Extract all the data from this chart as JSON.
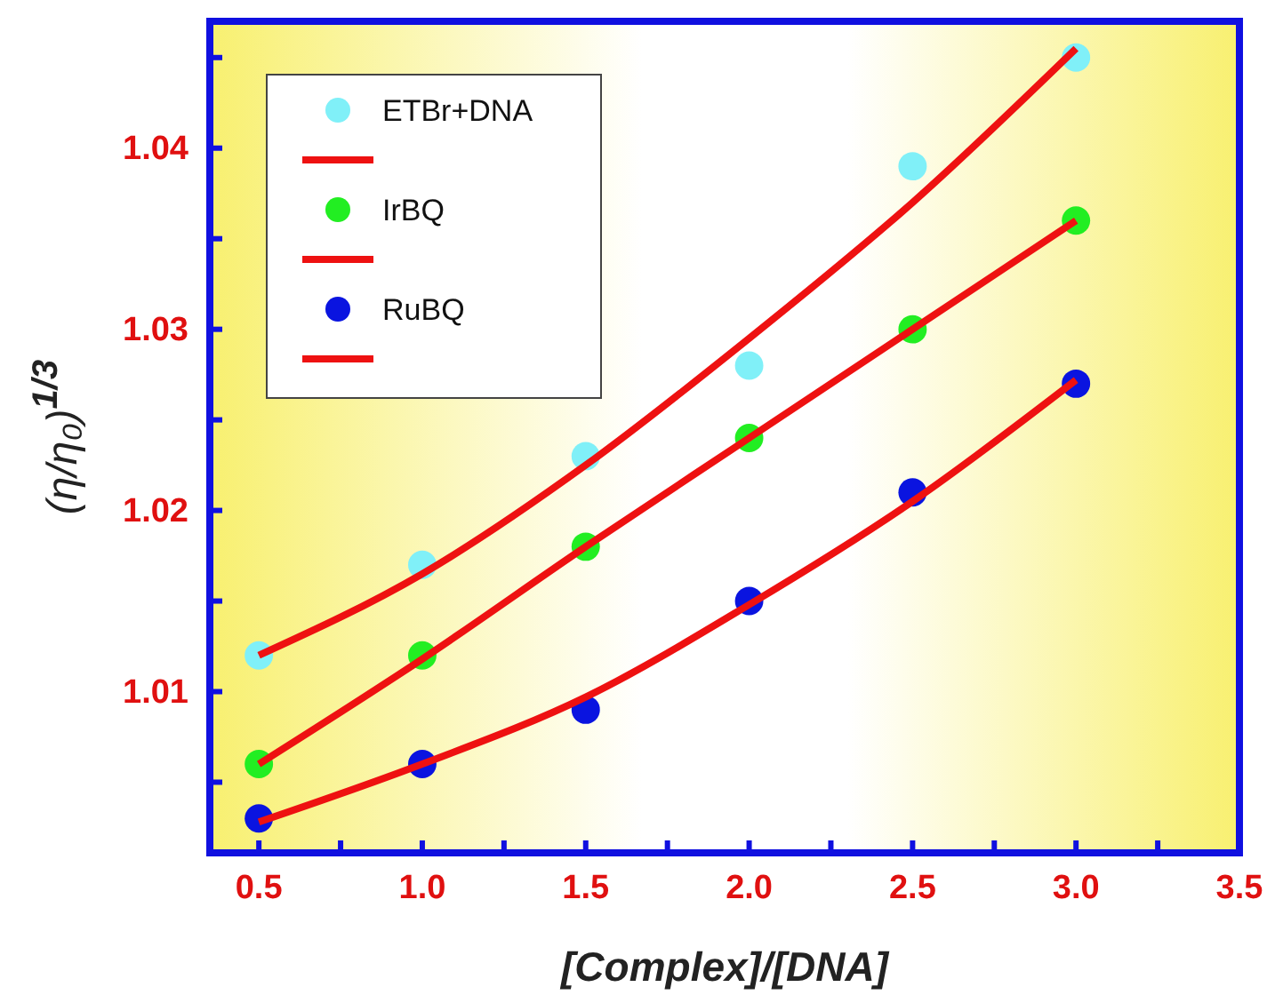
{
  "chart_data": {
    "type": "scatter",
    "xlabel": "[Complex]/[DNA]",
    "ylabel": "(η/η₀)$^{1/3}$",
    "xlim": [
      0.35,
      3.5
    ],
    "ylim": [
      1.0011,
      1.047
    ],
    "xticks": [
      {
        "value": 0.5,
        "label": "0.5"
      },
      {
        "value": 0.75,
        "label": null
      },
      {
        "value": 1.0,
        "label": "1.0"
      },
      {
        "value": 1.25,
        "label": null
      },
      {
        "value": 1.5,
        "label": "1.5"
      },
      {
        "value": 1.75,
        "label": null
      },
      {
        "value": 2.0,
        "label": "2.0"
      },
      {
        "value": 2.25,
        "label": null
      },
      {
        "value": 2.5,
        "label": "2.5"
      },
      {
        "value": 2.75,
        "label": null
      },
      {
        "value": 3.0,
        "label": "3.0"
      },
      {
        "value": 3.25,
        "label": null
      },
      {
        "value": 3.5,
        "label": "3.5"
      }
    ],
    "yticks": [
      {
        "value": 1.005,
        "label": null
      },
      1.01,
      {
        "value": 1.015,
        "label": null
      },
      1.02,
      {
        "value": 1.025,
        "label": null
      },
      1.03,
      {
        "value": 1.035,
        "label": null
      },
      1.04,
      {
        "value": 1.045,
        "label": null
      }
    ],
    "grid": false,
    "legend": "top left",
    "marker": "circle",
    "series": [
      {
        "name": "ETBr+DNA",
        "color": "#80f0f8",
        "x": [
          0.5,
          1.0,
          1.5,
          2.0,
          2.5,
          3.0
        ],
        "values": [
          1.012,
          1.017,
          1.023,
          1.028,
          1.039,
          1.045
        ]
      },
      {
        "type": "line",
        "marker": "none",
        "color": "#ee1111",
        "x": [
          0.5,
          1.0,
          1.5,
          2.0,
          2.5,
          3.0
        ],
        "values": [
          1.012,
          1.0165,
          1.0225,
          1.0295,
          1.037,
          1.0455
        ]
      },
      {
        "name": "IrBQ",
        "color": "#22ee22",
        "x": [
          0.5,
          1.0,
          1.5,
          2.0,
          2.5,
          3.0
        ],
        "values": [
          1.006,
          1.012,
          1.018,
          1.024,
          1.03,
          1.036
        ]
      },
      {
        "type": "line",
        "marker": "none",
        "color": "#ee1111",
        "x": [
          0.5,
          1.0,
          1.5,
          2.0,
          2.5,
          3.0
        ],
        "values": [
          1.006,
          1.0118,
          1.018,
          1.024,
          1.03,
          1.036
        ]
      },
      {
        "name": "RuBQ",
        "color": "#0a14e0",
        "x": [
          0.5,
          1.0,
          1.5,
          2.0,
          2.5,
          3.0
        ],
        "values": [
          1.003,
          1.006,
          1.009,
          1.015,
          1.021,
          1.027
        ]
      },
      {
        "type": "line",
        "marker": "none",
        "color": "#ee1111",
        "x": [
          0.5,
          1.0,
          1.5,
          2.0,
          2.5,
          3.0
        ],
        "values": [
          1.0028,
          1.006,
          1.0097,
          1.0148,
          1.0205,
          1.0272
        ]
      }
    ]
  }
}
